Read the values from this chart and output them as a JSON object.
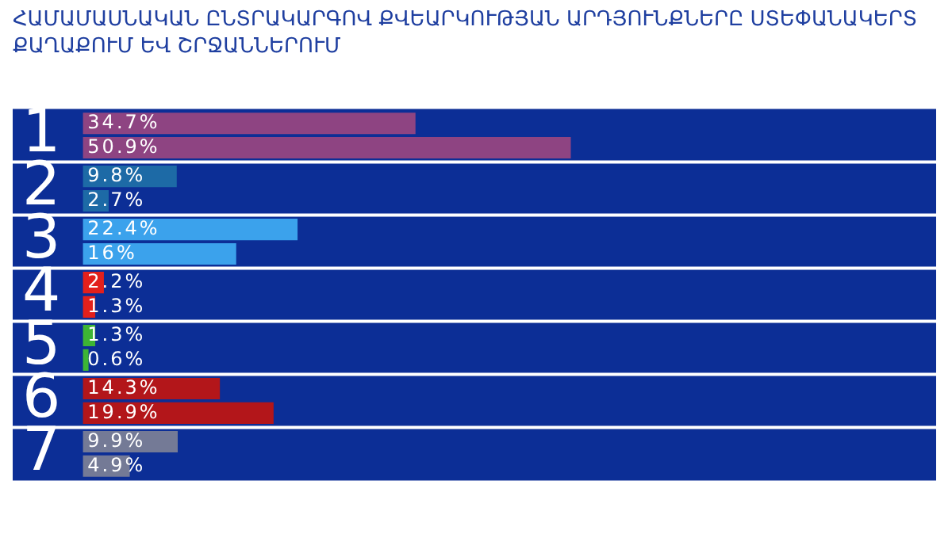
{
  "chart_data": {
    "type": "bar",
    "orientation": "horizontal",
    "title": "ՀԱՄԱՄԱՍՆԱԿԱՆ ԸՆՏՐԱԿԱՐԳՈՎ ՔՎԵԱՐԿՈՒԹՅԱՆ ԱՐԴՅՈՒՆՔՆԵՐԸ ՍՏԵՓԱՆԱԿԵՐՏ ՔԱՂԱՔՈՒՄ ԵՎ ՇՐՋԱՆՆԵՐՈՒՄ",
    "categories": [
      "1",
      "2",
      "3",
      "4",
      "5",
      "6",
      "7"
    ],
    "xlim": [
      0,
      89
    ],
    "tick_labels": "y",
    "grid": false,
    "legend": false,
    "series": [
      {
        "colors": [
          "#8e4482",
          "#1d6aa6",
          "#3ba2ec",
          "#e3201c",
          "#3db535",
          "#b3161a",
          "#747a96"
        ],
        "values": [
          34.7,
          9.8,
          22.4,
          2.2,
          1.3,
          14.3,
          9.9
        ],
        "value_labels": [
          "34.7%",
          "9.8%",
          "22.4%",
          "2.2%",
          "1.3%",
          "14.3%",
          "9.9%"
        ]
      },
      {
        "colors": [
          "#8e4482",
          "#1d6aa6",
          "#3ba2ec",
          "#e3201c",
          "#3db535",
          "#b3161a",
          "#747a96"
        ],
        "values": [
          50.9,
          2.7,
          16,
          1.3,
          0.6,
          19.9,
          4.9
        ],
        "value_labels": [
          "50.9%",
          "2.7%",
          "16%",
          "1.3%",
          "0.6%",
          "19.9%",
          "4.9%"
        ]
      }
    ]
  }
}
